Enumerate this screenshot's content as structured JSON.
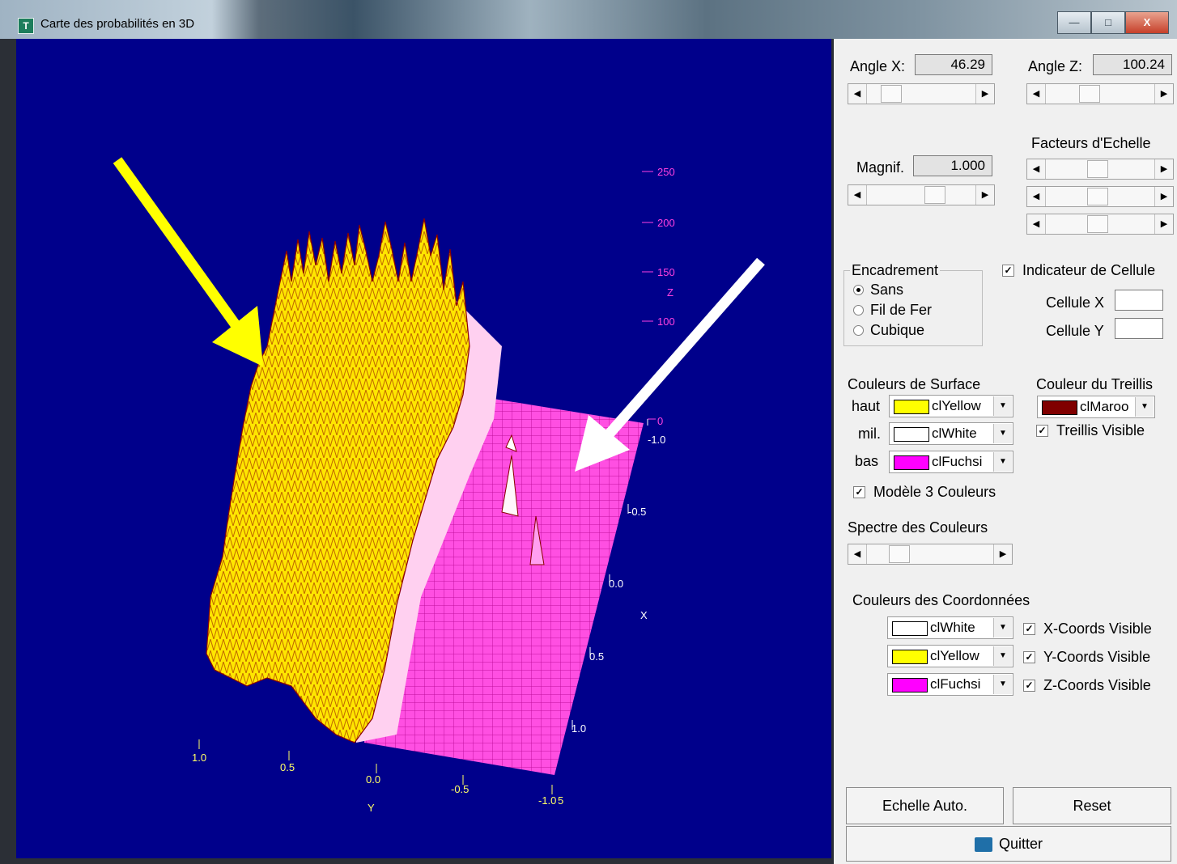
{
  "window": {
    "title": "Carte des probabilités en 3D",
    "controls": {
      "minimize": "—",
      "maximize": "□",
      "close": "X"
    }
  },
  "plot": {
    "z_ticks": [
      "250",
      "200",
      "150",
      "100",
      "0"
    ],
    "z_label": "Z",
    "x_ticks": [
      "-1.0",
      "-0.5",
      "0.0",
      "0.5",
      "1.0"
    ],
    "x_label": "X",
    "y_ticks": [
      "1.0",
      "0.5",
      "0.0",
      "-0.5",
      "-1.0"
    ],
    "y_label": "Y",
    "extra_tick": "5",
    "colors": {
      "background": "#00008b",
      "high": "#ffff00",
      "mid": "#ffffff",
      "low": "#ff40e0",
      "mesh": "#8b0000",
      "arrow_left": "#ffff00",
      "arrow_right": "#ffffff"
    }
  },
  "panel": {
    "angle_x": {
      "label": "Angle X:",
      "value": "46.29",
      "slider": 0.15
    },
    "angle_z": {
      "label": "Angle Z:",
      "value": "100.24",
      "slider": 0.28
    },
    "magnif": {
      "label": "Magnif.",
      "value": "1.000",
      "slider": 0.55
    },
    "scale_factors": {
      "label": "Facteurs d'Echelle",
      "sliders": [
        0.5,
        0.5,
        0.5
      ]
    },
    "framing": {
      "title": "Encadrement",
      "options": [
        "Sans",
        "Fil de Fer",
        "Cubique"
      ],
      "selected": "Sans"
    },
    "cell_indicator": {
      "label": "Indicateur de Cellule",
      "checked": true,
      "cell_x": "Cellule X",
      "cell_y": "Cellule Y"
    },
    "surface_colors": {
      "title": "Couleurs de Surface",
      "rows": [
        {
          "label": "haut",
          "value": "clYellow",
          "color": "#ffff00"
        },
        {
          "label": "mil.",
          "value": "clWhite",
          "color": "#ffffff"
        },
        {
          "label": "bas",
          "value": "clFuchsi",
          "color": "#ff00ff"
        }
      ]
    },
    "mesh_color": {
      "title": "Couleur du Treillis",
      "value": "clMaroo",
      "color": "#800000",
      "visible_label": "Treillis Visible"
    },
    "three_colors": {
      "label": "Modèle 3 Couleurs",
      "checked": true
    },
    "spectrum": {
      "label": "Spectre des Couleurs",
      "slider": 0.22
    },
    "coord_colors": {
      "title": "Couleurs des Coordonnées",
      "rows": [
        {
          "value": "clWhite",
          "color": "#ffffff",
          "check": "X-Coords Visible"
        },
        {
          "value": "clYellow",
          "color": "#ffff00",
          "check": "Y-Coords Visible"
        },
        {
          "value": "clFuchsi",
          "color": "#ff00ff",
          "check": "Z-Coords Visible"
        }
      ]
    },
    "buttons": {
      "auto_scale": "Echelle Auto.",
      "reset": "Reset",
      "quit": "Quitter"
    }
  }
}
